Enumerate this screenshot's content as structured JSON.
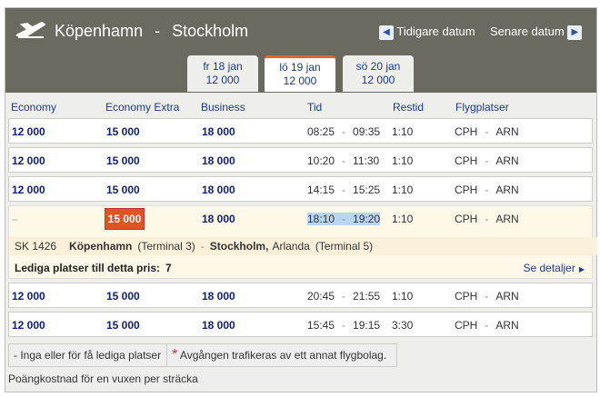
{
  "header": {
    "origin": "Köpenhamn",
    "separator": "-",
    "destination": "Stockholm",
    "prev": "Tidigare datum",
    "next": "Senare datum"
  },
  "tabs": [
    {
      "day": "fr 18 jan",
      "price": "12 000"
    },
    {
      "day": "lö 19 jan",
      "price": "12 000",
      "selected": true
    },
    {
      "day": "sö 20 jan",
      "price": "12 000"
    }
  ],
  "columns": [
    "Economy",
    "Economy Extra",
    "Business",
    "Tid",
    "Restid",
    "Flygplatser"
  ],
  "rows": [
    {
      "economy": "12 000",
      "economy_extra": "15 000",
      "business": "18 000",
      "depart": "08:25",
      "arrive": "09:35",
      "duration": "1:10",
      "origin": "CPH",
      "destination": "ARN"
    },
    {
      "economy": "12 000",
      "economy_extra": "15 000",
      "business": "18 000",
      "depart": "10:20",
      "arrive": "11:30",
      "duration": "1:10",
      "origin": "CPH",
      "destination": "ARN"
    },
    {
      "economy": "12 000",
      "economy_extra": "15 000",
      "business": "18 000",
      "depart": "14:15",
      "arrive": "15:25",
      "duration": "1:10",
      "origin": "CPH",
      "destination": "ARN"
    },
    {
      "economy": "–",
      "economy_extra": "15 000",
      "business": "18 000",
      "depart": "18:10",
      "arrive": "19:20",
      "duration": "1:10",
      "origin": "CPH",
      "destination": "ARN",
      "details": {
        "flight": "SK 1426",
        "from_city": "Köpenhamn",
        "from_terminal": "(Terminal 3)",
        "to_city": "Stockholm,",
        "to_airport": "Arlanda",
        "to_terminal": "(Terminal 5)",
        "seats_label": "Lediga platser till detta pris:",
        "seats": "7",
        "link": "Se detaljer"
      }
    },
    {
      "economy": "12 000",
      "economy_extra": "15 000",
      "business": "18 000",
      "depart": "20:45",
      "arrive": "21:55",
      "duration": "1:10",
      "origin": "CPH",
      "destination": "ARN"
    },
    {
      "economy": "12 000",
      "economy_extra": "15 000",
      "business": "18 000",
      "depart": "15:45",
      "arrive": "19:15",
      "duration": "3:30",
      "origin": "CPH",
      "destination": "ARN"
    }
  ],
  "legend": {
    "no_seats": "- Inga eller för få lediga platser",
    "asterisk": "*",
    "other_carrier": "Avgången trafikeras av ett annat flygbolag."
  },
  "footer": "Poängkostnad för en vuxen per sträcka"
}
